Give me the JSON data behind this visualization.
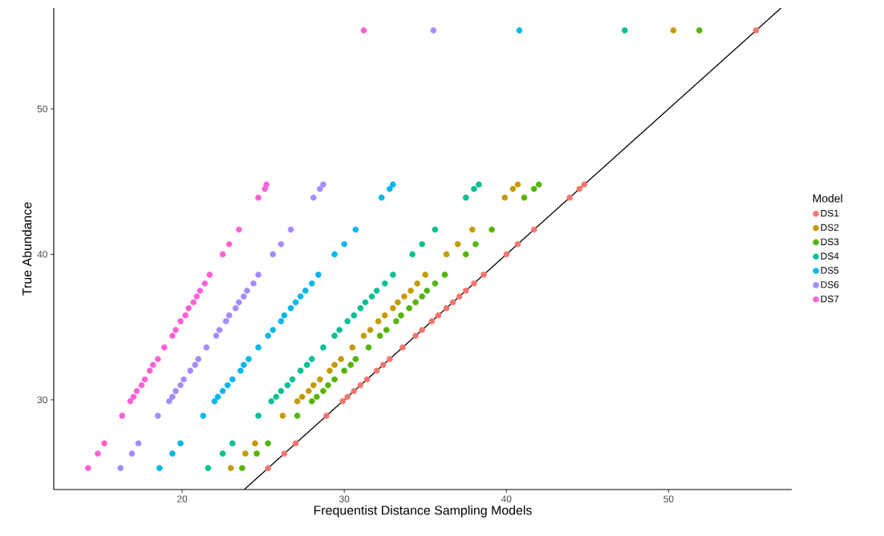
{
  "chart_data": {
    "type": "scatter",
    "xlabel": "Frequentist Distance Sampling Models",
    "ylabel": "True Abundance",
    "legend_title": "Model",
    "legend": "right",
    "marker": "circle",
    "xlim": [
      12.08,
      57.6
    ],
    "ylim": [
      23.83,
      56.94
    ],
    "xticks": [
      20,
      30,
      40,
      50
    ],
    "yticks": [
      30,
      40,
      50
    ],
    "series": [
      {
        "name": "DS1",
        "color": "#f8766d",
        "x": [
          25.3,
          26.3,
          27.0,
          28.9,
          29.9,
          30.2,
          30.6,
          31.0,
          31.4,
          32.0,
          32.4,
          32.8,
          33.6,
          34.4,
          34.8,
          35.4,
          35.8,
          36.3,
          36.7,
          37.1,
          37.5,
          38.0,
          38.6,
          40.0,
          40.7,
          41.7,
          43.9,
          44.5,
          44.8,
          55.4
        ],
        "values": [
          25.3,
          26.3,
          27.0,
          28.9,
          29.9,
          30.2,
          30.6,
          31.0,
          31.4,
          32.0,
          32.4,
          32.8,
          33.6,
          34.4,
          34.8,
          35.4,
          35.8,
          36.3,
          36.7,
          37.1,
          37.5,
          38.0,
          38.6,
          40.0,
          40.7,
          41.7,
          43.9,
          44.5,
          44.8,
          55.4
        ]
      },
      {
        "name": "DS2",
        "color": "#c49a00",
        "x": [
          23.0,
          23.9,
          24.5,
          26.2,
          27.1,
          27.4,
          27.8,
          28.1,
          28.5,
          29.1,
          29.4,
          29.8,
          30.5,
          31.2,
          31.6,
          32.1,
          32.5,
          33.0,
          33.3,
          33.7,
          34.1,
          34.5,
          35.0,
          36.3,
          37.0,
          37.9,
          39.9,
          40.4,
          40.7,
          50.3
        ],
        "values": [
          25.3,
          26.3,
          27.0,
          28.9,
          29.9,
          30.2,
          30.6,
          31.0,
          31.4,
          32.0,
          32.4,
          32.8,
          33.6,
          34.4,
          34.8,
          35.4,
          35.8,
          36.3,
          36.7,
          37.1,
          37.5,
          38.0,
          38.6,
          40.0,
          40.7,
          41.7,
          43.9,
          44.5,
          44.8,
          55.4
        ]
      },
      {
        "name": "DS3",
        "color": "#53b400",
        "x": [
          23.7,
          24.6,
          25.3,
          27.1,
          28.0,
          28.3,
          28.7,
          29.0,
          29.4,
          30.0,
          30.4,
          30.7,
          31.5,
          32.2,
          32.6,
          33.2,
          33.5,
          34.0,
          34.4,
          34.8,
          35.1,
          35.6,
          36.2,
          37.5,
          38.1,
          39.1,
          41.1,
          41.7,
          42.0,
          51.9
        ],
        "values": [
          25.3,
          26.3,
          27.0,
          28.9,
          29.9,
          30.2,
          30.6,
          31.0,
          31.4,
          32.0,
          32.4,
          32.8,
          33.6,
          34.4,
          34.8,
          35.4,
          35.8,
          36.3,
          36.7,
          37.1,
          37.5,
          38.0,
          38.6,
          40.0,
          40.7,
          41.7,
          43.9,
          44.5,
          44.8,
          55.4
        ]
      },
      {
        "name": "DS4",
        "color": "#00c094",
        "x": [
          21.6,
          22.5,
          23.1,
          24.7,
          25.5,
          25.8,
          26.1,
          26.5,
          26.8,
          27.3,
          27.7,
          28.0,
          28.7,
          29.4,
          29.7,
          30.2,
          30.6,
          31.0,
          31.3,
          31.7,
          32.0,
          32.5,
          33.0,
          34.2,
          34.8,
          35.6,
          37.5,
          38.0,
          38.3,
          47.3
        ],
        "values": [
          25.3,
          26.3,
          27.0,
          28.9,
          29.9,
          30.2,
          30.6,
          31.0,
          31.4,
          32.0,
          32.4,
          32.8,
          33.6,
          34.4,
          34.8,
          35.4,
          35.8,
          36.3,
          36.7,
          37.1,
          37.5,
          38.0,
          38.6,
          40.0,
          40.7,
          41.7,
          43.9,
          44.5,
          44.8,
          55.4
        ]
      },
      {
        "name": "DS5",
        "color": "#00b6eb",
        "x": [
          18.6,
          19.4,
          19.9,
          21.3,
          22.0,
          22.2,
          22.5,
          22.8,
          23.1,
          23.6,
          23.8,
          24.1,
          24.7,
          25.3,
          25.6,
          26.1,
          26.3,
          26.7,
          27.0,
          27.3,
          27.6,
          28.0,
          28.4,
          29.4,
          30.0,
          30.7,
          32.3,
          32.8,
          33.0,
          40.8
        ],
        "values": [
          25.3,
          26.3,
          27.0,
          28.9,
          29.9,
          30.2,
          30.6,
          31.0,
          31.4,
          32.0,
          32.4,
          32.8,
          33.6,
          34.4,
          34.8,
          35.4,
          35.8,
          36.3,
          36.7,
          37.1,
          37.5,
          38.0,
          38.6,
          40.0,
          40.7,
          41.7,
          43.9,
          44.5,
          44.8,
          55.4
        ]
      },
      {
        "name": "DS6",
        "color": "#a58aff",
        "x": [
          16.2,
          16.9,
          17.3,
          18.5,
          19.2,
          19.4,
          19.6,
          19.9,
          20.1,
          20.5,
          20.8,
          21.0,
          21.5,
          22.1,
          22.3,
          22.7,
          22.9,
          23.3,
          23.5,
          23.8,
          24.0,
          24.4,
          24.7,
          25.6,
          26.1,
          26.7,
          28.1,
          28.5,
          28.7,
          35.5
        ],
        "values": [
          25.3,
          26.3,
          27.0,
          28.9,
          29.9,
          30.2,
          30.6,
          31.0,
          31.4,
          32.0,
          32.4,
          32.8,
          33.6,
          34.4,
          34.8,
          35.4,
          35.8,
          36.3,
          36.7,
          37.1,
          37.5,
          38.0,
          38.6,
          40.0,
          40.7,
          41.7,
          43.9,
          44.5,
          44.8,
          55.4
        ]
      },
      {
        "name": "DS7",
        "color": "#fb61d7",
        "x": [
          14.2,
          14.8,
          15.2,
          16.3,
          16.8,
          17.0,
          17.2,
          17.5,
          17.7,
          18.0,
          18.2,
          18.5,
          18.9,
          19.4,
          19.6,
          19.9,
          20.2,
          20.4,
          20.7,
          20.9,
          21.1,
          21.4,
          21.7,
          22.5,
          22.9,
          23.5,
          24.7,
          25.1,
          25.2,
          31.2
        ],
        "values": [
          25.3,
          26.3,
          27.0,
          28.9,
          29.9,
          30.2,
          30.6,
          31.0,
          31.4,
          32.0,
          32.4,
          32.8,
          33.6,
          34.4,
          34.8,
          35.4,
          35.8,
          36.3,
          36.7,
          37.1,
          37.5,
          38.0,
          38.6,
          40.0,
          40.7,
          41.7,
          43.9,
          44.5,
          44.8,
          55.4
        ]
      },
      {
        "type": "line",
        "color": "#000000",
        "marker": "none",
        "x": [
          23.83,
          56.94
        ],
        "values": [
          23.83,
          56.94
        ]
      }
    ]
  }
}
